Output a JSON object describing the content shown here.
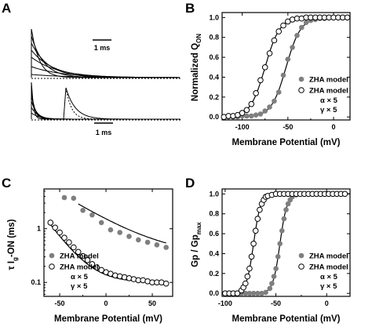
{
  "panel_letters": [
    "A",
    "B",
    "C",
    "D"
  ],
  "colors": {
    "filled_marker": "#7f7f7f",
    "line": "#000000"
  },
  "panel_a": {
    "scale_bar_top": "1 ms",
    "scale_bar_bottom": "1 ms"
  },
  "chart_data": [
    {
      "panel": "B",
      "type": "scatter",
      "ylabel_main": "Normalized Q",
      "ylabel_sub": "ON",
      "xlabel": "Membrane Potential (mV)",
      "xlim": [
        -122,
        18
      ],
      "ylim": [
        -0.03,
        1.05
      ],
      "xticks": [
        -100,
        -50,
        0
      ],
      "yticks": [
        "0.0",
        "0.2",
        "0.4",
        "0.6",
        "0.8",
        "1.0"
      ],
      "legend": {
        "position": "lower-right",
        "entries": [
          "ZHA model",
          "ZHA model"
        ],
        "extra_lines": [
          "α × 5",
          "γ × 5"
        ]
      },
      "series": [
        {
          "marker": "filled",
          "v_half": -52,
          "slope": 8,
          "x": [
            -120,
            -115,
            -110,
            -105,
            -100,
            -95,
            -90,
            -85,
            -80,
            -75,
            -70,
            -65,
            -60,
            -55,
            -50,
            -45,
            -40,
            -35,
            -30,
            -25,
            -20,
            -15,
            -10,
            -5,
            0,
            5,
            10,
            15
          ],
          "y": [
            0.0,
            0.0,
            0.0,
            0.0,
            0.01,
            0.01,
            0.01,
            0.02,
            0.03,
            0.06,
            0.1,
            0.16,
            0.25,
            0.42,
            0.58,
            0.7,
            0.82,
            0.9,
            0.95,
            0.97,
            0.98,
            0.99,
            0.99,
            1.0,
            1.0,
            1.0,
            1.0,
            1.0
          ]
        },
        {
          "marker": "open",
          "v_half": -75,
          "slope": 8,
          "x": [
            -120,
            -115,
            -110,
            -105,
            -100,
            -95,
            -90,
            -85,
            -80,
            -75,
            -70,
            -65,
            -60,
            -55,
            -50,
            -45,
            -40,
            -35,
            -30,
            -25,
            -20,
            -15,
            -10,
            -5,
            0,
            5,
            10,
            15
          ],
          "y": [
            0.0,
            0.01,
            0.01,
            0.02,
            0.04,
            0.07,
            0.13,
            0.24,
            0.37,
            0.5,
            0.64,
            0.77,
            0.86,
            0.92,
            0.96,
            0.98,
            0.99,
            0.99,
            1.0,
            1.0,
            1.0,
            1.0,
            1.0,
            1.0,
            1.0,
            1.0,
            1.0,
            1.0
          ]
        }
      ]
    },
    {
      "panel": "C",
      "type": "scatter",
      "ylabel_main": "τ I",
      "ylabel_sub": "g",
      "ylabel_tail": "-ON (ms)",
      "xlabel": "Membrane Potential (mV)",
      "xlim": [
        -67,
        72
      ],
      "ylog": true,
      "ylim": [
        0.055,
        5.5
      ],
      "xticks": [
        -50,
        0,
        50
      ],
      "yticks": [
        "0.1",
        "1"
      ],
      "ytick_values": [
        0.1,
        1
      ],
      "legend": {
        "position": "lower-left",
        "entries": [
          "ZHA model",
          "ZHA model"
        ],
        "extra_lines": [
          "α × 5",
          "γ × 5"
        ]
      },
      "series": [
        {
          "marker": "filled",
          "x": [
            -45,
            -35,
            -25,
            -15,
            -5,
            5,
            15,
            25,
            35,
            45,
            55,
            65
          ],
          "y": [
            3.8,
            3.7,
            2.2,
            1.8,
            1.3,
            0.95,
            0.85,
            0.72,
            0.62,
            0.56,
            0.5,
            0.45
          ],
          "fit_x": [
            -30,
            65
          ],
          "fit_y0": 2.9,
          "fit_tau_mv": 40,
          "fit_inf": 0.3
        },
        {
          "marker": "open",
          "x": [
            -60,
            -55,
            -50,
            -45,
            -40,
            -35,
            -30,
            -25,
            -20,
            -15,
            -10,
            -5,
            0,
            5,
            10,
            15,
            20,
            25,
            30,
            35,
            40,
            45,
            50,
            55,
            60,
            65
          ],
          "y": [
            1.3,
            1.05,
            0.85,
            0.68,
            0.56,
            0.45,
            0.37,
            0.31,
            0.26,
            0.22,
            0.19,
            0.17,
            0.155,
            0.145,
            0.135,
            0.13,
            0.125,
            0.12,
            0.115,
            0.11,
            0.11,
            0.105,
            0.1,
            0.1,
            0.1,
            0.095
          ],
          "fit_x": [
            -60,
            65
          ],
          "fit_y0": 1.2,
          "fit_tau_mv": 18,
          "fit_inf": 0.1
        }
      ]
    },
    {
      "panel": "D",
      "type": "scatter",
      "ylabel_main": "Gp / Gp",
      "ylabel_sub": "max",
      "xlabel": "Membrane Potential (mV)",
      "xlim": [
        -103,
        23
      ],
      "ylim": [
        -0.03,
        1.05
      ],
      "xticks": [
        -100,
        -50,
        0
      ],
      "yticks": [
        "0.0",
        "0.2",
        "0.4",
        "0.6",
        "0.8",
        "1.0"
      ],
      "legend": {
        "position": "lower-right",
        "entries": [
          "ZHA model",
          "ZHA model"
        ],
        "extra_lines": [
          "α × 5",
          "γ × 5"
        ]
      },
      "series": [
        {
          "marker": "filled",
          "v_half": -46,
          "slope": 3.5,
          "x": [
            -100,
            -96,
            -92,
            -88,
            -84,
            -80,
            -76,
            -72,
            -68,
            -64,
            -60,
            -56,
            -54,
            -52,
            -50,
            -48,
            -46,
            -44,
            -42,
            -40,
            -38,
            -36,
            -34,
            -30,
            -26,
            -22,
            -18,
            -14,
            -10,
            -6,
            -2,
            2,
            6,
            10,
            14,
            18
          ],
          "y": [
            0,
            0,
            0,
            0,
            0,
            0,
            0,
            0,
            0,
            0,
            0.01,
            0.05,
            0.1,
            0.17,
            0.25,
            0.37,
            0.5,
            0.63,
            0.75,
            0.84,
            0.9,
            0.94,
            0.97,
            0.99,
            1,
            1,
            1,
            1,
            1,
            1,
            1,
            1,
            1,
            1,
            1,
            1
          ]
        },
        {
          "marker": "open",
          "v_half": -72,
          "slope": 3.5,
          "x": [
            -100,
            -96,
            -92,
            -88,
            -84,
            -82,
            -80,
            -78,
            -76,
            -74,
            -72,
            -70,
            -68,
            -66,
            -64,
            -62,
            -60,
            -58,
            -54,
            -50,
            -46,
            -42,
            -38,
            -34,
            -30,
            -26,
            -22,
            -18,
            -14,
            -10,
            -6,
            -2,
            2,
            6,
            10,
            14,
            18
          ],
          "y": [
            0,
            0,
            0,
            0,
            0.03,
            0.06,
            0.1,
            0.17,
            0.25,
            0.37,
            0.5,
            0.63,
            0.75,
            0.84,
            0.9,
            0.94,
            0.97,
            0.98,
            0.99,
            1,
            1,
            1,
            1,
            1,
            1,
            1,
            1,
            1,
            1,
            1,
            1,
            1,
            1,
            1,
            1,
            1,
            1
          ]
        }
      ]
    }
  ]
}
